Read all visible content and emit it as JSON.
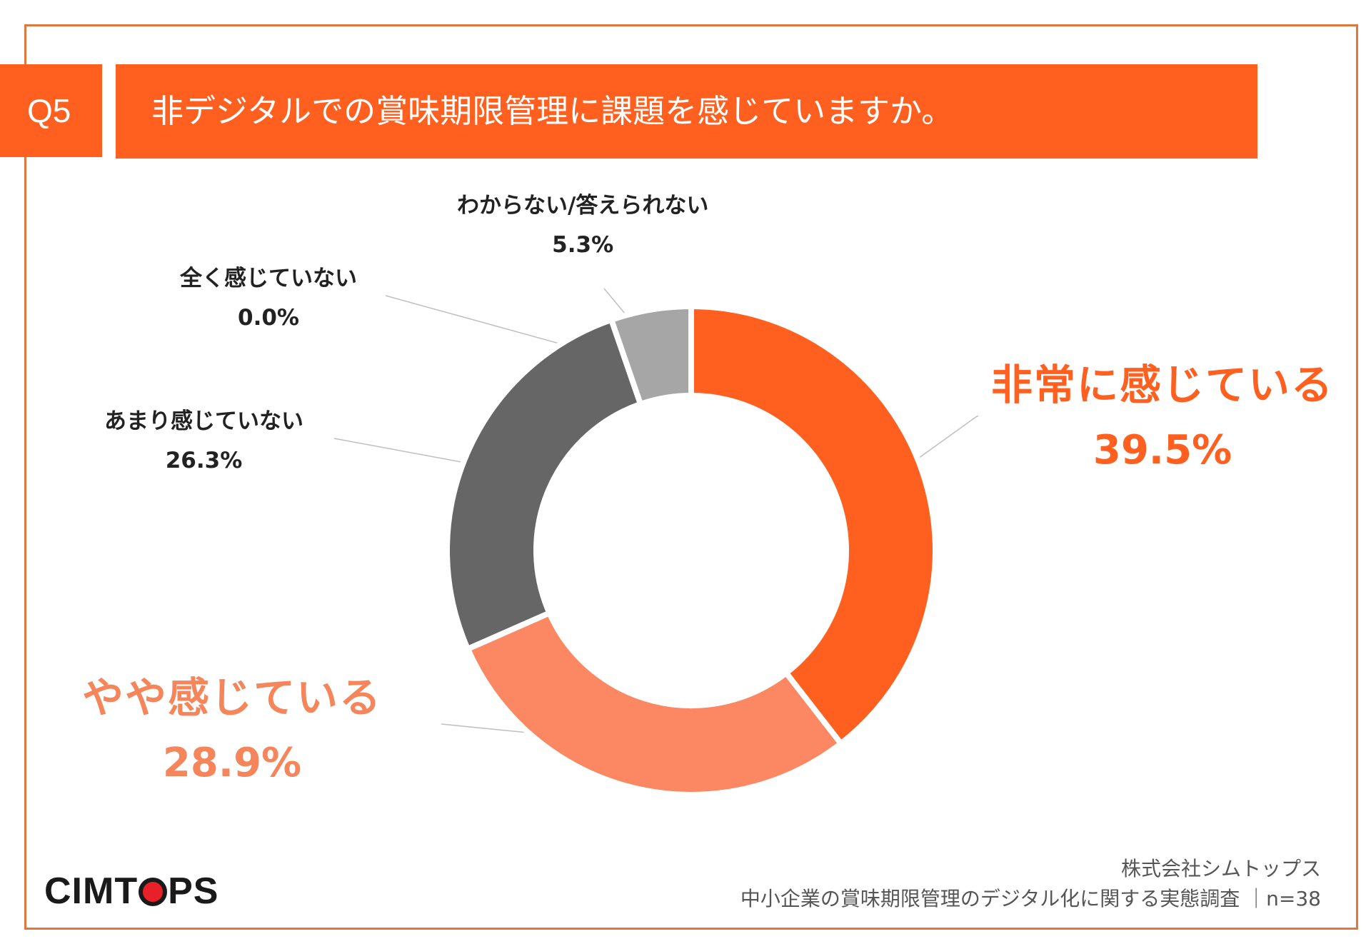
{
  "header": {
    "question_badge": "Q5",
    "title": "非デジタルでの賞味期限管理に課題を感じていますか。"
  },
  "chart_data": {
    "type": "pie",
    "donut": true,
    "slices": [
      {
        "label": "非常に感じている",
        "value": 39.5,
        "value_label": "39.5%",
        "color": "#ff5f1f"
      },
      {
        "label": "やや感じている",
        "value": 28.9,
        "value_label": "28.9%",
        "color": "#fb8863"
      },
      {
        "label": "あまり感じていない",
        "value": 26.3,
        "value_label": "26.3%",
        "color": "#666666"
      },
      {
        "label": "全く感じていない",
        "value": 0.0,
        "value_label": "0.0%",
        "color": "#3f3f3f"
      },
      {
        "label": "わからない/答えられない",
        "value": 5.3,
        "value_label": "5.3%",
        "color": "#a6a6a6"
      }
    ]
  },
  "footer": {
    "company": "株式会社シムトップス",
    "survey": "中小企業の賞味期限管理のデジタル化に関する実態調査 ｜n=38"
  },
  "logo": {
    "left": "CIMT",
    "right": "PS"
  }
}
